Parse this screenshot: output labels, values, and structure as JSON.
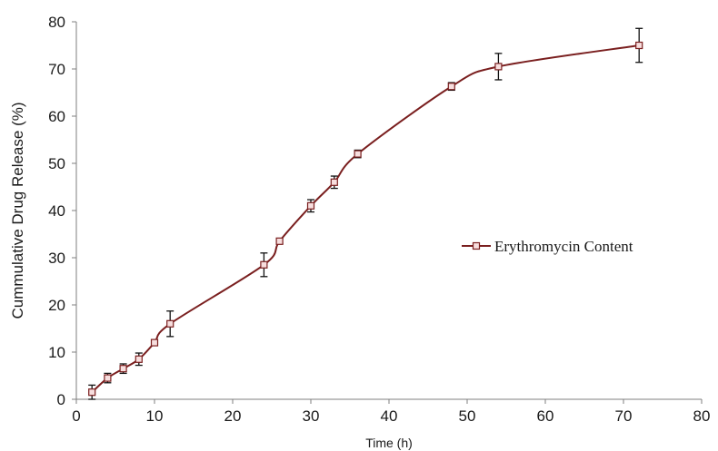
{
  "chart_data": {
    "type": "line",
    "title": "",
    "xlabel": "Time (h)",
    "ylabel": "Cummulative Drug Release (%)",
    "xlim": [
      0,
      80
    ],
    "ylim": [
      0,
      80
    ],
    "xticks": [
      0,
      10,
      20,
      30,
      40,
      50,
      60,
      70,
      80
    ],
    "yticks": [
      0,
      10,
      20,
      30,
      40,
      50,
      60,
      70,
      80
    ],
    "grid": false,
    "legend_position": "right",
    "series": [
      {
        "name": "Erythromycin Content",
        "color": "#7a1f1f",
        "marker": "square",
        "x": [
          2,
          4,
          6,
          8,
          10,
          12,
          24,
          26,
          30,
          33,
          36,
          48,
          54,
          72
        ],
        "y": [
          1.5,
          4.5,
          6.5,
          8.5,
          12,
          16,
          28.5,
          33.5,
          41,
          46,
          52,
          66.3,
          70.5,
          75
        ],
        "error": [
          1.5,
          1,
          1,
          1.3,
          0.5,
          2.7,
          2.5,
          0.5,
          1.3,
          1.3,
          0.8,
          0.8,
          2.8,
          3.6
        ]
      }
    ]
  }
}
